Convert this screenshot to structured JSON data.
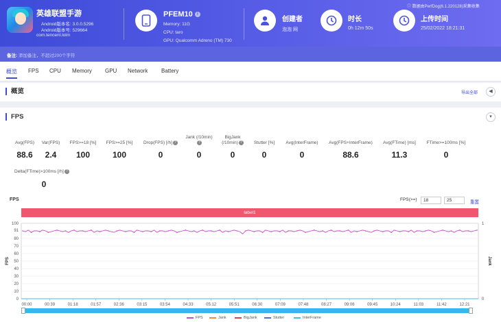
{
  "header": {
    "app_name": "英雄联盟手游",
    "android_version": "Android版本名: 3.0.0.5296",
    "android_code": "Android版本号: 529664",
    "package": "com.tencent.lolm",
    "device_name": "PFEM10",
    "memory": "Memory: 11G",
    "cpu": "CPU: taro",
    "gpu": "GPU: Qualcomm Adreno (TM) 730",
    "creator_label": "创建者",
    "creator_value": "泡泡 网",
    "duration_label": "时长",
    "duration_value": "0h 12m 50s",
    "upload_label": "上传时间",
    "upload_value": "25/02/2022 18:21:31",
    "watermark": "数据由PerfDog(6.1.220128)采集收集"
  },
  "note": {
    "label": "备注:",
    "placeholder": "添加备注，不超过200个字符"
  },
  "tabs": [
    "概览",
    "FPS",
    "CPU",
    "Memory",
    "GPU",
    "Network",
    "Battery"
  ],
  "overview": {
    "title": "概览",
    "export": "导出全部"
  },
  "fps_section": {
    "title": "FPS",
    "metrics": [
      {
        "label": "Avg(FPS)",
        "value": "88.6"
      },
      {
        "label": "Var(FPS)",
        "value": "2.4"
      },
      {
        "label": "FPS>=18 [%]",
        "value": "100"
      },
      {
        "label": "FPS>=25 [%]",
        "value": "100"
      },
      {
        "label": "Drop(FPS) [/h]",
        "value": "0",
        "help": true
      },
      {
        "label": "Jank (/10min)",
        "value": "0",
        "help": true
      },
      {
        "label": "BigJank (/10min)",
        "value": "0",
        "help": true
      },
      {
        "label": "Stutter [%]",
        "value": "0"
      },
      {
        "label": "Avg(InterFrame)",
        "value": "0"
      },
      {
        "label": "Avg(FPS+InterFrame)",
        "value": "88.6"
      },
      {
        "label": "Avg(FTime) [ms]",
        "value": "11.3"
      },
      {
        "label": "FTime>=100ms [%]",
        "value": "0"
      },
      {
        "label": "Delta(FTime)>100ms [/h]",
        "value": "0",
        "help": true
      }
    ]
  },
  "chart_controls": {
    "title": "FPS",
    "threshold_label": "FPS(>=)",
    "threshold_1": "18",
    "threshold_2": "25",
    "reset": "重置",
    "label_bar": "label1"
  },
  "chart_data": {
    "type": "line",
    "ylabel": "FPS",
    "y2label": "Jank",
    "ylim": [
      0,
      100
    ],
    "y2lim": [
      0,
      1
    ],
    "yticks": [
      0,
      10,
      20,
      30,
      40,
      50,
      60,
      70,
      80,
      91,
      100
    ],
    "y2ticks": [
      0,
      1
    ],
    "xticks": [
      "00:00",
      "00:39",
      "01:18",
      "01:57",
      "02:36",
      "03:15",
      "03:54",
      "04:33",
      "05:12",
      "05:51",
      "06:30",
      "07:09",
      "07:48",
      "08:27",
      "09:06",
      "09:45",
      "10:24",
      "11:03",
      "11:42",
      "12:21"
    ],
    "x_start_seconds": 0,
    "x_end_seconds": 770,
    "series": [
      {
        "name": "FPS",
        "color": "#c44fc4",
        "values": [
          90,
          89,
          91,
          88,
          90,
          90,
          89,
          91,
          90,
          88,
          89,
          90,
          91,
          90,
          89,
          90,
          88,
          90,
          91,
          89,
          90,
          90,
          89,
          90,
          91,
          88,
          90,
          89,
          90,
          91,
          90,
          89,
          88,
          90,
          91,
          90,
          89,
          90,
          90,
          88,
          91,
          90,
          89,
          90,
          90,
          89,
          91,
          88,
          90,
          90,
          89,
          90,
          91,
          90,
          88,
          89,
          90,
          91,
          90,
          89,
          90,
          88,
          90,
          91,
          89,
          90,
          90,
          89,
          90,
          91,
          88,
          90,
          89,
          90,
          91,
          90,
          89,
          86,
          90,
          91,
          90,
          89,
          90,
          90,
          88,
          91,
          90,
          89,
          90,
          90,
          89,
          91,
          88,
          90,
          90,
          89,
          90,
          91,
          90,
          88,
          89,
          90,
          91,
          90,
          89,
          90,
          88,
          90,
          91,
          89,
          90,
          90,
          89,
          90,
          91,
          88,
          90,
          89,
          90,
          91,
          90,
          89,
          88,
          90,
          91,
          90,
          89,
          90,
          90,
          88,
          91,
          90,
          89,
          90,
          90,
          89,
          91,
          88,
          90,
          90,
          89,
          90,
          91,
          90,
          88,
          89,
          90,
          91,
          90,
          89,
          90,
          88,
          90,
          91,
          89,
          90,
          90,
          89,
          90,
          91
        ]
      },
      {
        "name": "Jank",
        "color": "#f08a3c",
        "values": [
          0
        ]
      },
      {
        "name": "BigJank",
        "color": "#e0453a",
        "values": [
          0
        ]
      },
      {
        "name": "Stutter",
        "color": "#4a6fd8",
        "values": [
          0
        ]
      },
      {
        "name": "InterFrame",
        "color": "#3fbfe6",
        "values": [
          0
        ]
      }
    ]
  }
}
